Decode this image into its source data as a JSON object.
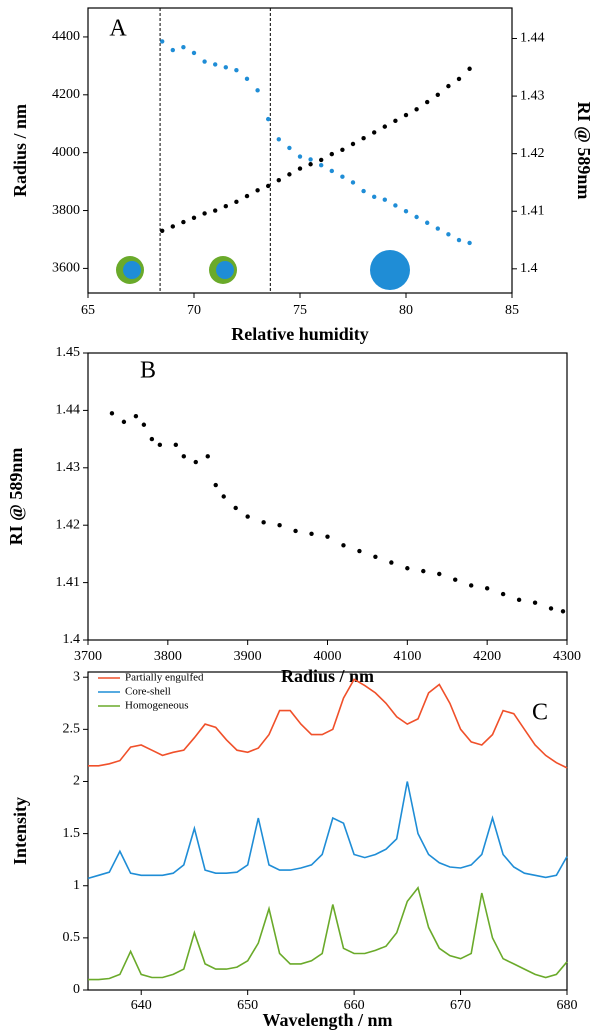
{
  "chart_data": [
    {
      "type": "scatter",
      "annotation": "A",
      "xlabel": "Relative humidity",
      "ylabel": "Radius / nm",
      "y2label": "RI @ 589nm",
      "xlim": [
        65,
        85
      ],
      "xticks": [
        65,
        70,
        75,
        80,
        85
      ],
      "ylim": [
        3515,
        4500
      ],
      "yticks": [
        3600,
        3800,
        4000,
        4200,
        4400
      ],
      "y2lim": [
        1.3958,
        1.4453
      ],
      "y2ticks": [
        1.4,
        1.41,
        1.42,
        1.43,
        1.44
      ],
      "vlines": [
        68.4,
        73.6
      ],
      "x": [
        68.5,
        69,
        69.5,
        70,
        70.5,
        71,
        71.5,
        72,
        72.5,
        73,
        73.5,
        74,
        74.5,
        75,
        75.5,
        76,
        76.5,
        77,
        77.5,
        78,
        78.5,
        79,
        79.5,
        80,
        80.5,
        81,
        81.5,
        82,
        82.5,
        83
      ],
      "series": [
        {
          "color": "#000000",
          "values": [
            3730,
            3745,
            3760,
            3775,
            3790,
            3800,
            3815,
            3830,
            3850,
            3870,
            3885,
            3905,
            3925,
            3945,
            3960,
            3975,
            3995,
            4010,
            4030,
            4050,
            4070,
            4090,
            4110,
            4130,
            4150,
            4175,
            4200,
            4230,
            4255,
            4290
          ]
        },
        {
          "color": "#1f8dd6",
          "axis": "y2",
          "values": [
            1.4395,
            1.438,
            1.4385,
            1.4375,
            1.436,
            1.4355,
            1.435,
            1.4345,
            1.433,
            1.431,
            1.426,
            1.4225,
            1.421,
            1.4195,
            1.419,
            1.418,
            1.417,
            1.416,
            1.415,
            1.4135,
            1.4125,
            1.412,
            1.411,
            1.41,
            1.409,
            1.408,
            1.407,
            1.406,
            1.405,
            1.4045
          ]
        }
      ]
    },
    {
      "type": "scatter",
      "annotation": "B",
      "xlabel": "Radius / nm",
      "ylabel": "RI @ 589nm",
      "xlim": [
        3700,
        4300
      ],
      "xticks": [
        3700,
        3800,
        3900,
        4000,
        4100,
        4200,
        4300
      ],
      "ylim": [
        1.4,
        1.45
      ],
      "yticks": [
        1.4,
        1.41,
        1.42,
        1.43,
        1.44,
        1.45
      ],
      "color": "#000000",
      "x": [
        3730,
        3745,
        3760,
        3770,
        3780,
        3790,
        3810,
        3820,
        3835,
        3850,
        3860,
        3870,
        3885,
        3900,
        3920,
        3940,
        3960,
        3980,
        4000,
        4020,
        4040,
        4060,
        4080,
        4100,
        4120,
        4140,
        4160,
        4180,
        4200,
        4220,
        4240,
        4260,
        4280,
        4295
      ],
      "values": [
        1.4395,
        1.438,
        1.439,
        1.4375,
        1.435,
        1.434,
        1.434,
        1.432,
        1.431,
        1.432,
        1.427,
        1.425,
        1.423,
        1.4215,
        1.4205,
        1.42,
        1.419,
        1.4185,
        1.418,
        1.4165,
        1.4155,
        1.4145,
        1.4135,
        1.4125,
        1.412,
        1.4115,
        1.4105,
        1.4095,
        1.409,
        1.408,
        1.407,
        1.4065,
        1.4055,
        1.405
      ]
    },
    {
      "type": "line",
      "annotation": "C",
      "xlabel": "Wavelength / nm",
      "ylabel": "Intensity",
      "legend": "upper left",
      "xlim": [
        635,
        680
      ],
      "xticks": [
        640,
        650,
        660,
        670,
        680
      ],
      "ylim": [
        0,
        3.05
      ],
      "yticks": [
        0,
        0.5,
        1,
        1.5,
        2,
        2.5,
        3
      ],
      "x": [
        635,
        636,
        637,
        638,
        639,
        640,
        641,
        642,
        643,
        644,
        645,
        646,
        647,
        648,
        649,
        650,
        651,
        652,
        653,
        654,
        655,
        656,
        657,
        658,
        659,
        660,
        661,
        662,
        663,
        664,
        665,
        666,
        667,
        668,
        669,
        670,
        671,
        672,
        673,
        674,
        675,
        676,
        677,
        678,
        679,
        680
      ],
      "series": [
        {
          "name": "Partially engulfed",
          "color": "#f0502a",
          "values": [
            2.15,
            2.15,
            2.17,
            2.2,
            2.33,
            2.35,
            2.3,
            2.25,
            2.28,
            2.3,
            2.42,
            2.55,
            2.52,
            2.4,
            2.3,
            2.28,
            2.32,
            2.45,
            2.68,
            2.68,
            2.55,
            2.45,
            2.45,
            2.5,
            2.8,
            2.98,
            2.92,
            2.85,
            2.75,
            2.62,
            2.55,
            2.6,
            2.85,
            2.93,
            2.75,
            2.5,
            2.38,
            2.35,
            2.45,
            2.68,
            2.65,
            2.5,
            2.35,
            2.25,
            2.18,
            2.13
          ]
        },
        {
          "name": "Core-shell",
          "color": "#1f8dd6",
          "values": [
            1.07,
            1.1,
            1.13,
            1.33,
            1.12,
            1.1,
            1.1,
            1.1,
            1.12,
            1.2,
            1.55,
            1.15,
            1.12,
            1.12,
            1.13,
            1.2,
            1.65,
            1.2,
            1.15,
            1.15,
            1.17,
            1.2,
            1.3,
            1.65,
            1.6,
            1.3,
            1.27,
            1.3,
            1.35,
            1.45,
            2.0,
            1.5,
            1.3,
            1.22,
            1.18,
            1.17,
            1.2,
            1.3,
            1.65,
            1.3,
            1.18,
            1.12,
            1.1,
            1.08,
            1.1,
            1.28
          ]
        },
        {
          "name": "Homogeneous",
          "color": "#6aaa2a",
          "values": [
            0.1,
            0.1,
            0.11,
            0.15,
            0.37,
            0.15,
            0.12,
            0.12,
            0.15,
            0.2,
            0.55,
            0.25,
            0.2,
            0.2,
            0.22,
            0.28,
            0.45,
            0.78,
            0.35,
            0.25,
            0.25,
            0.28,
            0.35,
            0.82,
            0.4,
            0.35,
            0.35,
            0.38,
            0.42,
            0.55,
            0.85,
            0.98,
            0.6,
            0.4,
            0.33,
            0.3,
            0.35,
            0.93,
            0.5,
            0.3,
            0.25,
            0.2,
            0.15,
            0.12,
            0.15,
            0.27
          ]
        }
      ]
    }
  ]
}
